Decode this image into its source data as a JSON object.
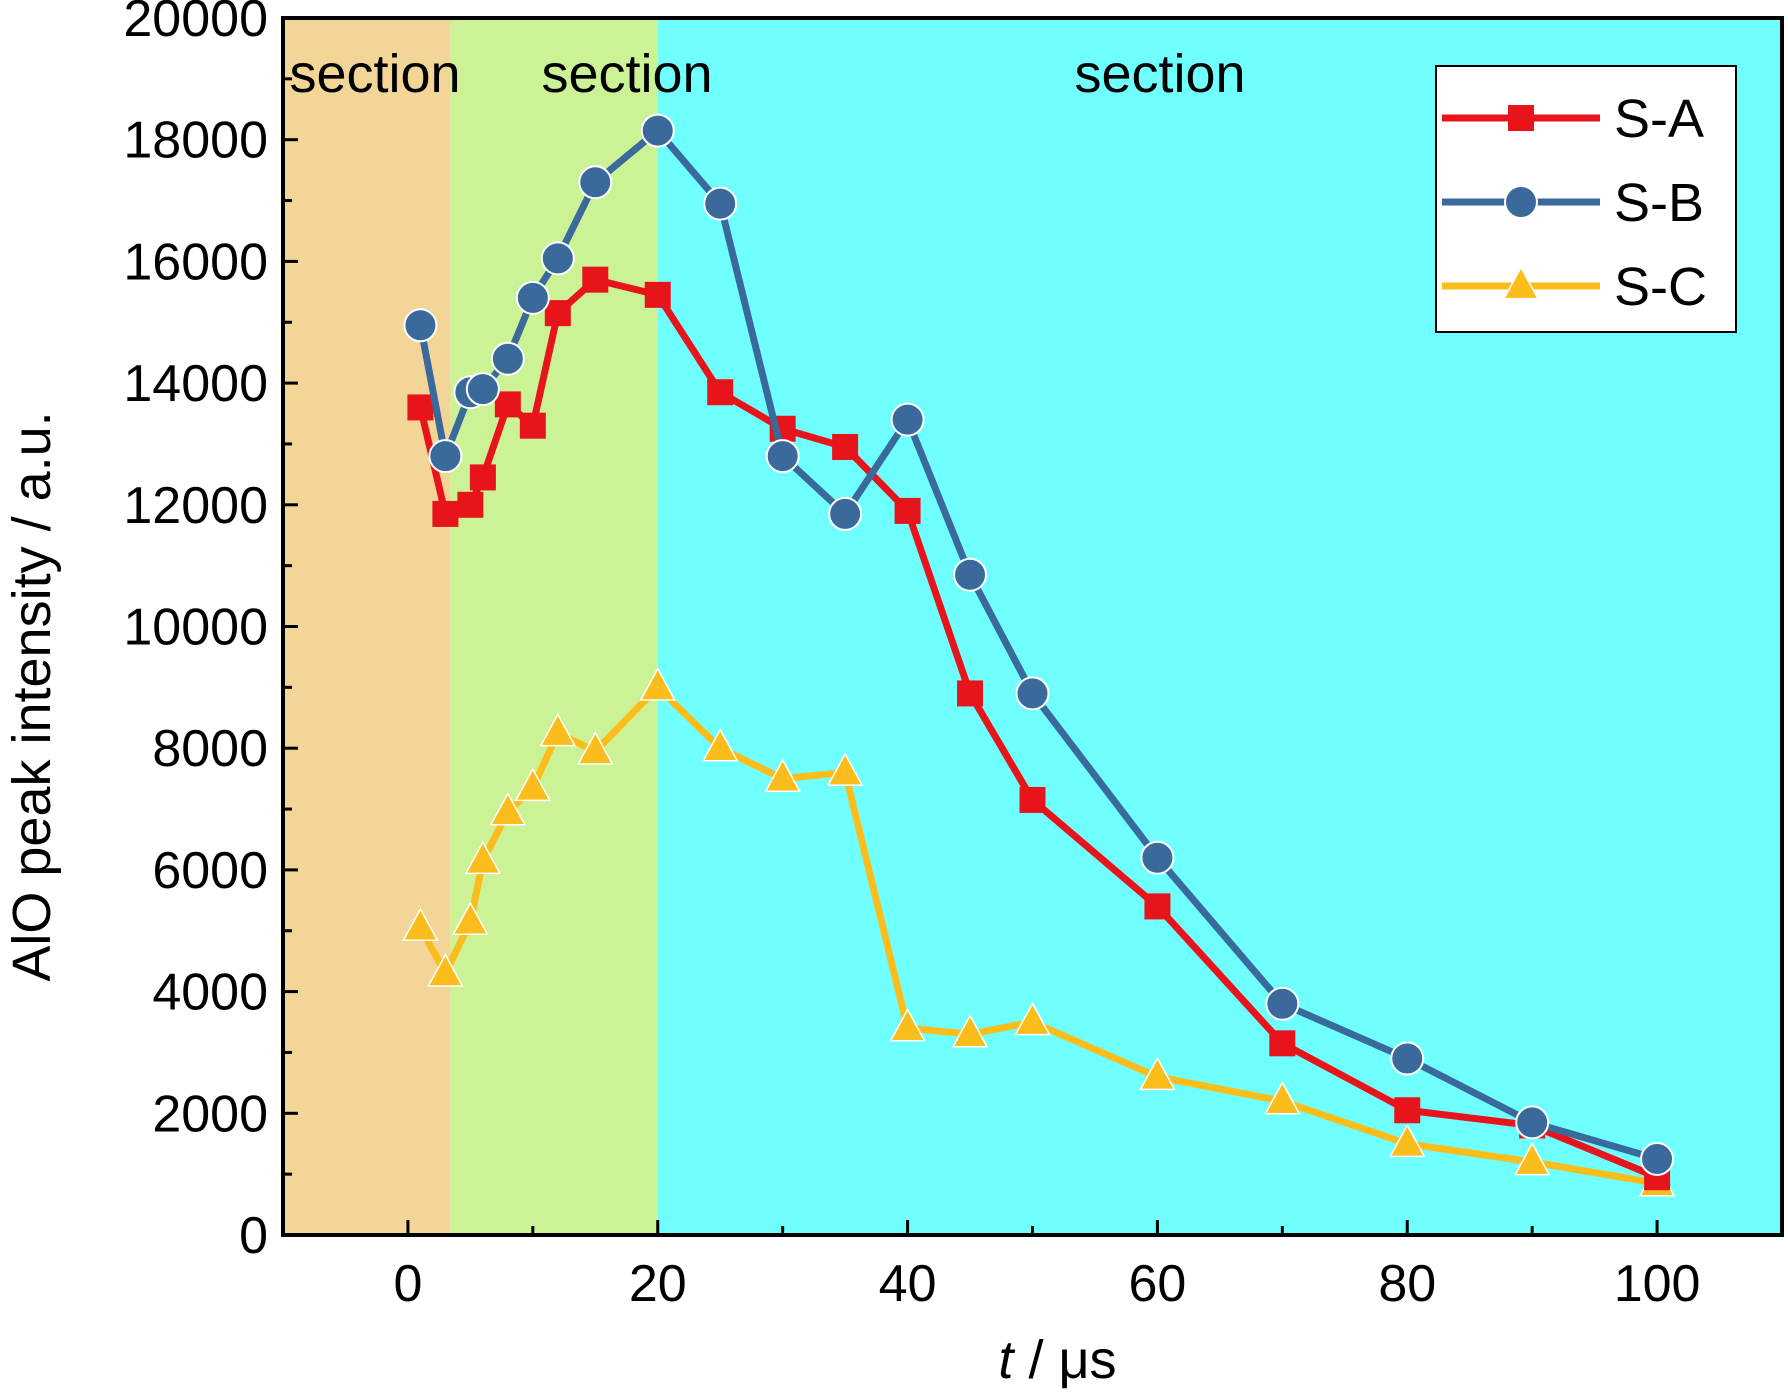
{
  "chart_data": {
    "type": "line",
    "title": "",
    "xlabel": "t / μs",
    "xlabel_italic_part": "t",
    "xlabel_rest": " / μs",
    "ylabel": "AlO peak intensity / a.u.",
    "xlim": [
      -10,
      110
    ],
    "ylim": [
      0,
      20000
    ],
    "x_ticks": [
      0,
      20,
      40,
      60,
      80,
      100
    ],
    "y_ticks": [
      0,
      2000,
      4000,
      6000,
      8000,
      10000,
      12000,
      14000,
      16000,
      18000,
      20000
    ],
    "x_tick_labels": [
      "0",
      "20",
      "40",
      "60",
      "80",
      "100"
    ],
    "y_tick_labels": [
      "0",
      "2000",
      "4000",
      "6000",
      "8000",
      "10000",
      "12000",
      "14000",
      "16000",
      "18000",
      "20000"
    ],
    "grid": false,
    "legend_position": "top-right",
    "sections": [
      {
        "label": "section",
        "x_start": -10,
        "x_end": 3.4,
        "color": "#f2d597"
      },
      {
        "label": "section",
        "x_start": 3.4,
        "x_end": 20,
        "color": "#ccf296"
      },
      {
        "label": "section",
        "x_start": 20,
        "x_end": 110,
        "color": "#70ffff"
      }
    ],
    "series": [
      {
        "name": "S-A",
        "color": "#e8141c",
        "marker": "square",
        "x": [
          1,
          3,
          5,
          6,
          8,
          10,
          12,
          15,
          20,
          25,
          30,
          35,
          40,
          45,
          50,
          60,
          70,
          80,
          90,
          100
        ],
        "values": [
          13600,
          11850,
          12000,
          12450,
          13650,
          13300,
          15150,
          15700,
          15450,
          13850,
          13250,
          12950,
          11900,
          8900,
          7150,
          5400,
          3150,
          2050,
          1800,
          950
        ]
      },
      {
        "name": "S-B",
        "color": "#3a6a9c",
        "marker": "circle",
        "x": [
          1,
          3,
          5,
          6,
          8,
          10,
          12,
          15,
          20,
          25,
          30,
          35,
          40,
          45,
          50,
          60,
          70,
          80,
          90,
          100
        ],
        "values": [
          14950,
          12800,
          13850,
          13900,
          14400,
          15400,
          16050,
          17300,
          18150,
          16950,
          12800,
          11850,
          13400,
          10850,
          8900,
          6200,
          3800,
          2900,
          1850,
          1250
        ]
      },
      {
        "name": "S-C",
        "color": "#fbbd1c",
        "marker": "triangle",
        "x": [
          1,
          3,
          5,
          6,
          8,
          10,
          12,
          15,
          20,
          25,
          30,
          35,
          40,
          45,
          50,
          60,
          70,
          80,
          90,
          100
        ],
        "values": [
          5050,
          4300,
          5150,
          6150,
          6950,
          7350,
          8250,
          7950,
          9000,
          8000,
          7500,
          7600,
          3400,
          3300,
          3500,
          2600,
          2200,
          1500,
          1200,
          850
        ]
      }
    ]
  }
}
